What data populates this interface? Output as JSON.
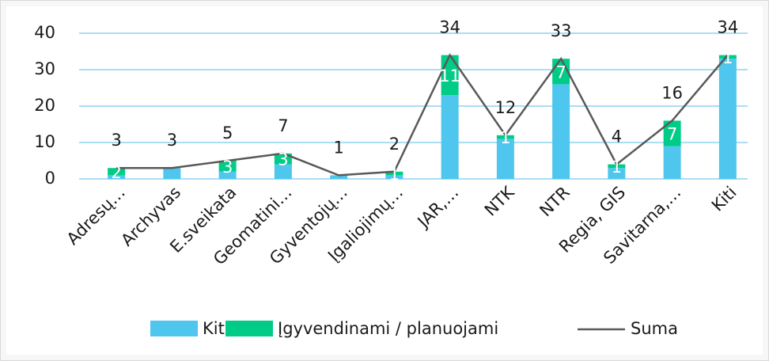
{
  "chart_data": {
    "type": "bar",
    "categories": [
      "Adresų…",
      "Archyvas",
      "E.sveikata",
      "Geomatini…",
      "Gyventojų…",
      "Įgaliojimų…",
      "JAR,…",
      "NTK",
      "NTR",
      "Regia, GIS",
      "Savitarna,…",
      "Kiti"
    ],
    "series": [
      {
        "name": "Kiti",
        "color": "#4fc6ee",
        "type": "bar",
        "values": [
          1,
          3,
          2,
          4,
          1,
          1,
          23,
          11,
          26,
          3,
          9,
          33
        ]
      },
      {
        "name": "Įgyvendinami / planuojami",
        "color": "#00cc88",
        "type": "bar",
        "values": [
          2,
          null,
          3,
          3,
          null,
          1,
          11,
          1,
          7,
          1,
          7,
          1
        ]
      },
      {
        "name": "Suma",
        "color": "#595959",
        "type": "line",
        "values": [
          3,
          3,
          5,
          7,
          1,
          2,
          34,
          12,
          33,
          4,
          16,
          34
        ]
      }
    ],
    "ylim": [
      0,
      40
    ],
    "yticks": [
      0,
      10,
      20,
      30,
      40
    ],
    "grid": true,
    "stacked": true,
    "legend": "bottom"
  }
}
